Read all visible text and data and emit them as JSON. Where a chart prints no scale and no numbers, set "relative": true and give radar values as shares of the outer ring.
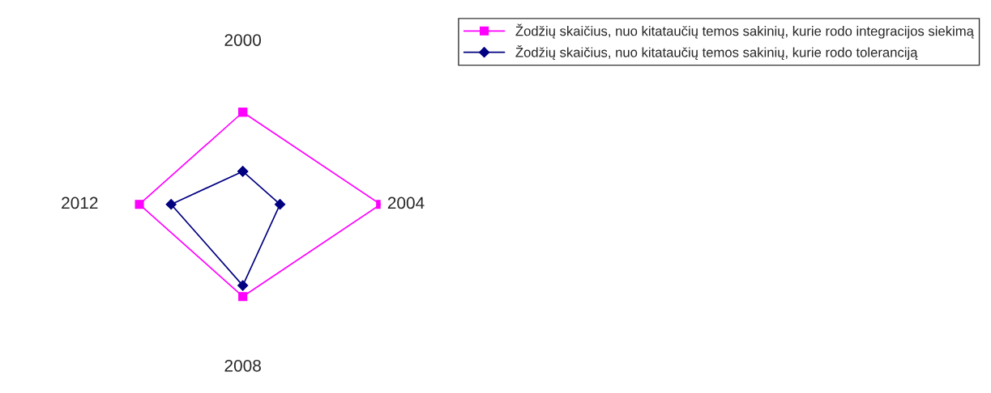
{
  "chart_data": {
    "type": "radar",
    "relative": true,
    "categories": [
      "2000",
      "2004",
      "2008",
      "2012"
    ],
    "legend": "top right",
    "grid": false,
    "series": [
      {
        "name": "Žodžių skaičius, nuo kitataučių temos sakinių, kurie rodo integracijos siekimą",
        "color": "#ff00ff",
        "marker": "square",
        "values": [
          0.67,
          1.0,
          0.67,
          0.75
        ]
      },
      {
        "name": "Žodžių skaičius, nuo kitataučių temos sakinių, kurie rodo toleranciją",
        "color": "#000080",
        "marker": "diamond",
        "values": [
          0.24,
          0.27,
          0.59,
          0.52
        ]
      }
    ]
  }
}
